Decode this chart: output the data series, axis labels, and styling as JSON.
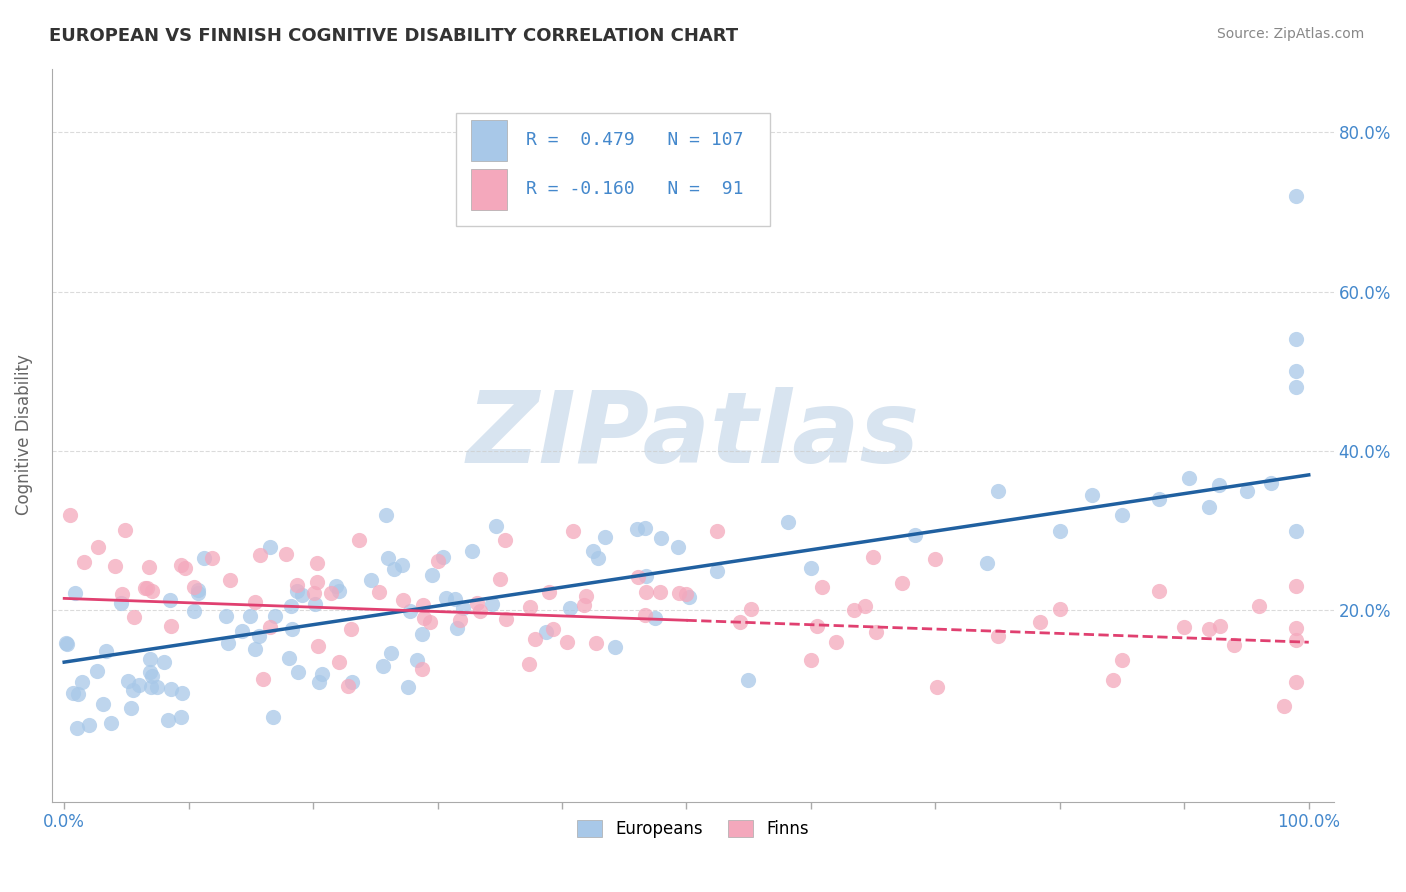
{
  "title": "EUROPEAN VS FINNISH COGNITIVE DISABILITY CORRELATION CHART",
  "source": "Source: ZipAtlas.com",
  "ylabel": "Cognitive Disability",
  "xlim": [
    -0.01,
    1.02
  ],
  "ylim": [
    -0.04,
    0.88
  ],
  "ytick_positions": [
    0.2,
    0.4,
    0.6,
    0.8
  ],
  "ytick_labels": [
    "20.0%",
    "40.0%",
    "60.0%",
    "80.0%"
  ],
  "xtick_positions": [
    0.0,
    0.1,
    0.2,
    0.3,
    0.4,
    0.5,
    0.6,
    0.7,
    0.8,
    0.9,
    1.0
  ],
  "xtick_labels_show": [
    "0.0%",
    "",
    "",
    "",
    "",
    "",
    "",
    "",
    "",
    "",
    "100.0%"
  ],
  "european_color": "#a8c8e8",
  "finn_color": "#f4a8bc",
  "european_line_color": "#2060a0",
  "finn_line_color": "#e04070",
  "R_european": 0.479,
  "N_european": 107,
  "R_finn": -0.16,
  "N_finn": 91,
  "background_color": "#ffffff",
  "grid_color": "#cccccc",
  "title_color": "#333333",
  "axis_label_color": "#4488cc",
  "watermark_color": "#d8e4f0",
  "eur_line_y0": 0.135,
  "eur_line_y1": 0.37,
  "fin_line_y0": 0.215,
  "fin_line_y1": 0.16,
  "fin_line_solid_end": 0.5
}
